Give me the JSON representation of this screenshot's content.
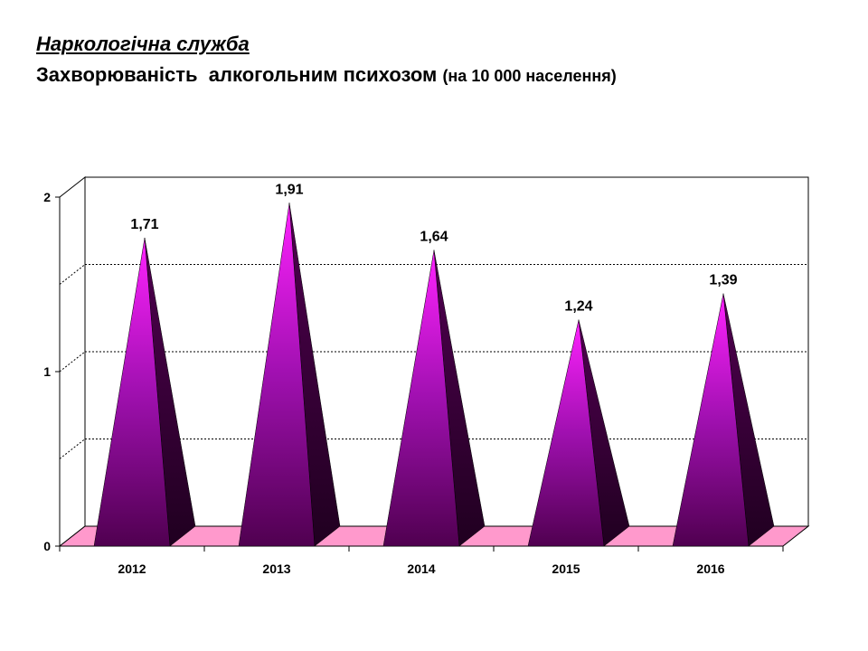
{
  "header": {
    "title": "Наркологічна служба",
    "subtitle_main": "Захворюваність  алкогольним психозом",
    "subtitle_unit": "(на 10 000 населення)"
  },
  "chart_data": {
    "type": "bar",
    "style": "3d-pyramid",
    "categories": [
      "2012",
      "2013",
      "2014",
      "2015",
      "2016"
    ],
    "values": [
      1.71,
      1.91,
      1.64,
      1.24,
      1.39
    ],
    "data_labels": [
      "1,71",
      "1,91",
      "1,64",
      "1,24",
      "1,39"
    ],
    "yticks": [
      {
        "value": 0,
        "label": "0"
      },
      {
        "value": 1,
        "label": "1"
      },
      {
        "value": 2,
        "label": "2"
      }
    ],
    "ylim": [
      0,
      2
    ],
    "gridlines": [
      0.5,
      1,
      1.5
    ],
    "grid": true,
    "legend": "none",
    "colors": {
      "pyramid_light": "#ff22ff",
      "pyramid_mid": "#a010b0",
      "pyramid_dark": "#500050",
      "side_dark": "#200020",
      "floor": "#ff99cc",
      "axis": "#000000",
      "grid": "#000000"
    }
  }
}
